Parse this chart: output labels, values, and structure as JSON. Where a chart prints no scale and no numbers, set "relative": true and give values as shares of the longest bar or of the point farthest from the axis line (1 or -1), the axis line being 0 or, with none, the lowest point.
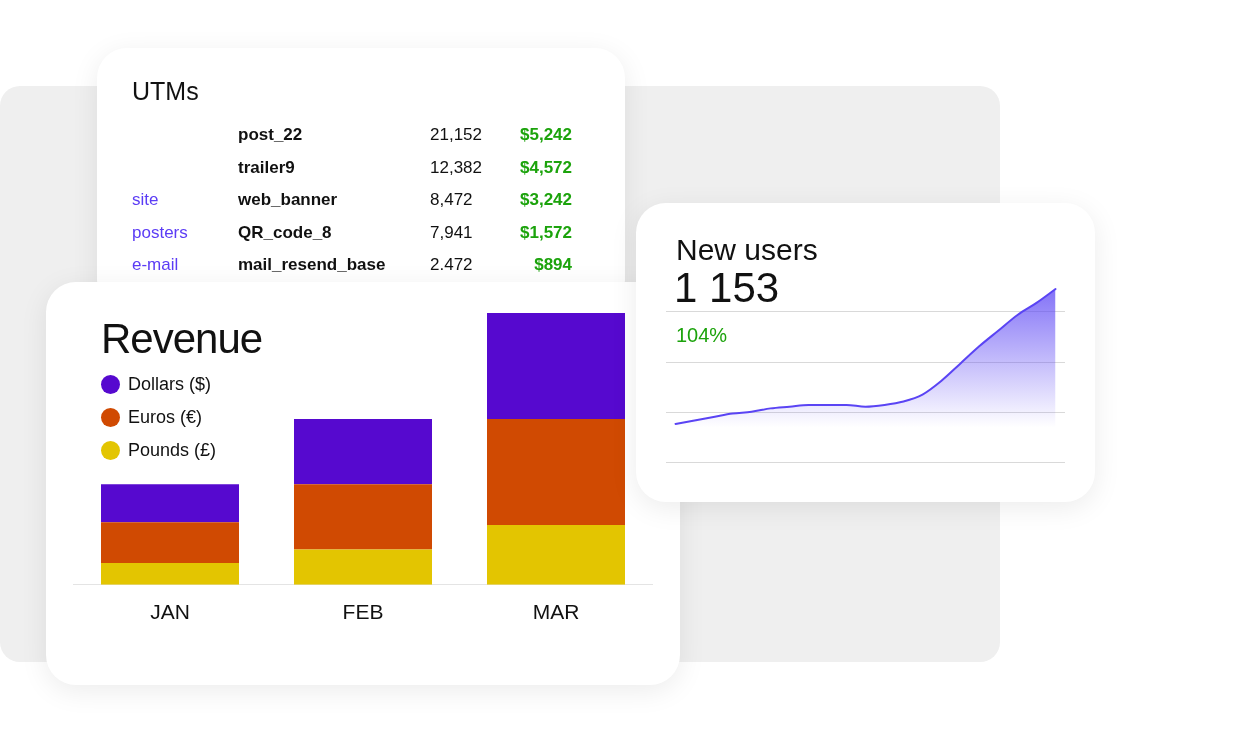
{
  "chart_data": [
    {
      "type": "other",
      "title": "UTMs",
      "categories": [
        null,
        null,
        "site",
        "posters",
        "e-mail"
      ],
      "annotations": [
        "post_22",
        "21,152",
        "$5,242",
        "trailer9",
        "12,382",
        "$4,572",
        "web_banner",
        "8,472",
        "$3,242",
        "QR_code_8",
        "7,941",
        "$1,572",
        "mail_resend_base",
        "2.472",
        "$894"
      ]
    },
    {
      "type": "bar",
      "title": "Revenue",
      "categories": [
        "JAN",
        "FEB",
        "MAR"
      ],
      "stacked": true,
      "relative": true,
      "legend": "top left",
      "series": [
        {
          "name": "Pounds (£)",
          "color": "#e3c501",
          "values": [
            0.08,
            0.13,
            0.22
          ]
        },
        {
          "name": "Euros (€)",
          "color": "#d04a02",
          "values": [
            0.15,
            0.24,
            0.39
          ]
        },
        {
          "name": "Dollars ($)",
          "color": "#5609cf",
          "values": [
            0.14,
            0.24,
            0.39
          ]
        }
      ]
    },
    {
      "type": "area",
      "title": "New users",
      "subtitle": "1 153",
      "annotations": [
        "104%"
      ],
      "relative": true,
      "ref_lines": [
        {
          "axis": "y",
          "value": 0,
          "color": "#d9d9d9"
        },
        {
          "axis": "y",
          "value": 0.29,
          "color": "#d9d9d9"
        },
        {
          "axis": "y",
          "value": 0.58,
          "color": "#d9d9d9"
        },
        {
          "axis": "y",
          "value": 0.87,
          "color": "#d9d9d9"
        }
      ],
      "categories": [
        null,
        null,
        null,
        null,
        null,
        null,
        null,
        null,
        null,
        null,
        null,
        null,
        null,
        null,
        null,
        null,
        null,
        null,
        null,
        null,
        null
      ],
      "series": [
        {
          "color": "#5a44f4",
          "values": [
            0.22,
            0.24,
            0.26,
            0.28,
            0.29,
            0.31,
            0.32,
            0.33,
            0.33,
            0.33,
            0.32,
            0.33,
            0.35,
            0.39,
            0.47,
            0.57,
            0.67,
            0.76,
            0.85,
            0.92,
            1
          ]
        }
      ]
    }
  ]
}
